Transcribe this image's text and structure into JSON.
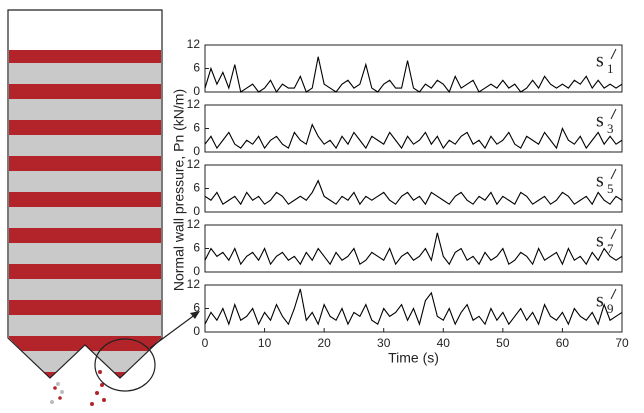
{
  "y_label": "Normal wall pressure, Pn (kN/m)",
  "chart_data": [
    {
      "type": "line",
      "label": "s",
      "label_subscript": "1",
      "color": "#000000",
      "x": [
        0,
        1,
        2,
        3,
        4,
        5,
        6,
        7,
        8,
        9,
        10,
        11,
        12,
        13,
        14,
        15,
        16,
        17,
        18,
        19,
        20,
        21,
        22,
        23,
        24,
        25,
        26,
        27,
        28,
        29,
        30,
        31,
        32,
        33,
        34,
        35,
        36,
        37,
        38,
        39,
        40,
        41,
        42,
        43,
        44,
        45,
        46,
        47,
        48,
        49,
        50,
        51,
        52,
        53,
        54,
        55,
        56,
        57,
        58,
        59,
        60,
        61,
        62,
        63,
        64,
        65,
        66,
        67,
        68,
        69,
        70
      ],
      "values": [
        1,
        6,
        2,
        5,
        1,
        7,
        0,
        1,
        2,
        0,
        1,
        3,
        0,
        2,
        1,
        1,
        4,
        0,
        1,
        9,
        2,
        1,
        0,
        2,
        3,
        1,
        2,
        7,
        1,
        0,
        2,
        3,
        1,
        1,
        8,
        1,
        0,
        2,
        1,
        3,
        2,
        0,
        4,
        1,
        2,
        3,
        0,
        1,
        2,
        1,
        3,
        1,
        2,
        0,
        1,
        3,
        1,
        4,
        2,
        1,
        2,
        1,
        3,
        2,
        4,
        1,
        3,
        1,
        2,
        1,
        2
      ],
      "xlim": [
        0,
        70
      ],
      "ylim": [
        0,
        12
      ],
      "yticks": [
        0,
        6,
        12
      ]
    },
    {
      "type": "line",
      "label": "s",
      "label_subscript": "3",
      "color": "#000000",
      "x": [
        0,
        1,
        2,
        3,
        4,
        5,
        6,
        7,
        8,
        9,
        10,
        11,
        12,
        13,
        14,
        15,
        16,
        17,
        18,
        19,
        20,
        21,
        22,
        23,
        24,
        25,
        26,
        27,
        28,
        29,
        30,
        31,
        32,
        33,
        34,
        35,
        36,
        37,
        38,
        39,
        40,
        41,
        42,
        43,
        44,
        45,
        46,
        47,
        48,
        49,
        50,
        51,
        52,
        53,
        54,
        55,
        56,
        57,
        58,
        59,
        60,
        61,
        62,
        63,
        64,
        65,
        66,
        67,
        68,
        69,
        70
      ],
      "values": [
        2,
        4,
        1,
        3,
        5,
        2,
        1,
        3,
        2,
        4,
        1,
        3,
        4,
        2,
        1,
        5,
        3,
        2,
        7,
        4,
        2,
        3,
        1,
        4,
        2,
        5,
        3,
        1,
        4,
        3,
        2,
        5,
        3,
        1,
        4,
        2,
        3,
        5,
        2,
        4,
        1,
        3,
        2,
        4,
        5,
        2,
        3,
        1,
        4,
        2,
        3,
        5,
        2,
        1,
        4,
        3,
        2,
        5,
        3,
        1,
        6,
        3,
        2,
        4,
        1,
        3,
        5,
        2,
        4,
        2,
        3
      ],
      "xlim": [
        0,
        70
      ],
      "ylim": [
        0,
        12
      ],
      "yticks": [
        0,
        6,
        12
      ]
    },
    {
      "type": "line",
      "label": "s",
      "label_subscript": "5",
      "color": "#000000",
      "x": [
        0,
        1,
        2,
        3,
        4,
        5,
        6,
        7,
        8,
        9,
        10,
        11,
        12,
        13,
        14,
        15,
        16,
        17,
        18,
        19,
        20,
        21,
        22,
        23,
        24,
        25,
        26,
        27,
        28,
        29,
        30,
        31,
        32,
        33,
        34,
        35,
        36,
        37,
        38,
        39,
        40,
        41,
        42,
        43,
        44,
        45,
        46,
        47,
        48,
        49,
        50,
        51,
        52,
        53,
        54,
        55,
        56,
        57,
        58,
        59,
        60,
        61,
        62,
        63,
        64,
        65,
        66,
        67,
        68,
        69,
        70
      ],
      "values": [
        4,
        3,
        5,
        2,
        3,
        4,
        2,
        5,
        3,
        4,
        2,
        3,
        5,
        4,
        2,
        3,
        4,
        3,
        5,
        8,
        4,
        3,
        2,
        4,
        3,
        5,
        2,
        4,
        3,
        4,
        5,
        3,
        2,
        4,
        5,
        3,
        4,
        2,
        5,
        4,
        3,
        2,
        4,
        5,
        3,
        2,
        4,
        3,
        5,
        2,
        4,
        3,
        2,
        5,
        4,
        2,
        3,
        4,
        2,
        3,
        5,
        4,
        2,
        3,
        4,
        2,
        5,
        3,
        2,
        4,
        3
      ],
      "xlim": [
        0,
        70
      ],
      "ylim": [
        0,
        12
      ],
      "yticks": [
        0,
        6,
        12
      ]
    },
    {
      "type": "line",
      "label": "s",
      "label_subscript": "7",
      "color": "#000000",
      "x": [
        0,
        1,
        2,
        3,
        4,
        5,
        6,
        7,
        8,
        9,
        10,
        11,
        12,
        13,
        14,
        15,
        16,
        17,
        18,
        19,
        20,
        21,
        22,
        23,
        24,
        25,
        26,
        27,
        28,
        29,
        30,
        31,
        32,
        33,
        34,
        35,
        36,
        37,
        38,
        39,
        40,
        41,
        42,
        43,
        44,
        45,
        46,
        47,
        48,
        49,
        50,
        51,
        52,
        53,
        54,
        55,
        56,
        57,
        58,
        59,
        60,
        61,
        62,
        63,
        64,
        65,
        66,
        67,
        68,
        69,
        70
      ],
      "values": [
        3,
        6,
        4,
        5,
        3,
        6,
        2,
        4,
        5,
        3,
        6,
        2,
        4,
        5,
        3,
        4,
        2,
        5,
        3,
        6,
        4,
        2,
        5,
        3,
        4,
        6,
        2,
        3,
        5,
        4,
        3,
        6,
        2,
        4,
        5,
        3,
        4,
        6,
        3,
        10,
        4,
        2,
        5,
        6,
        3,
        4,
        2,
        5,
        3,
        4,
        6,
        2,
        3,
        5,
        4,
        2,
        6,
        3,
        4,
        5,
        2,
        6,
        3,
        4,
        2,
        5,
        3,
        6,
        4,
        3,
        4
      ],
      "xlim": [
        0,
        70
      ],
      "ylim": [
        0,
        12
      ],
      "yticks": [
        0,
        6,
        12
      ]
    },
    {
      "type": "line",
      "label": "s",
      "label_subscript": "9",
      "color": "#000000",
      "x": [
        0,
        1,
        2,
        3,
        4,
        5,
        6,
        7,
        8,
        9,
        10,
        11,
        12,
        13,
        14,
        15,
        16,
        17,
        18,
        19,
        20,
        21,
        22,
        23,
        24,
        25,
        26,
        27,
        28,
        29,
        30,
        31,
        32,
        33,
        34,
        35,
        36,
        37,
        38,
        39,
        40,
        41,
        42,
        43,
        44,
        45,
        46,
        47,
        48,
        49,
        50,
        51,
        52,
        53,
        54,
        55,
        56,
        57,
        58,
        59,
        60,
        61,
        62,
        63,
        64,
        65,
        66,
        67,
        68,
        69,
        70
      ],
      "values": [
        2,
        5,
        3,
        6,
        2,
        7,
        3,
        4,
        6,
        2,
        5,
        3,
        7,
        4,
        2,
        6,
        11,
        3,
        5,
        2,
        7,
        4,
        3,
        6,
        2,
        5,
        4,
        7,
        3,
        2,
        6,
        4,
        5,
        7,
        3,
        6,
        2,
        8,
        10,
        4,
        3,
        6,
        2,
        5,
        7,
        3,
        4,
        2,
        6,
        3,
        5,
        2,
        4,
        6,
        3,
        5,
        2,
        7,
        4,
        3,
        5,
        2,
        6,
        4,
        3,
        5,
        2,
        7,
        3,
        4,
        5
      ],
      "xlim": [
        0,
        70
      ],
      "ylim": [
        0,
        12
      ],
      "yticks": [
        0,
        6,
        12
      ],
      "xticks": [
        0,
        10,
        20,
        30,
        40,
        50,
        60,
        70
      ],
      "x_label": "Time (s)"
    }
  ]
}
